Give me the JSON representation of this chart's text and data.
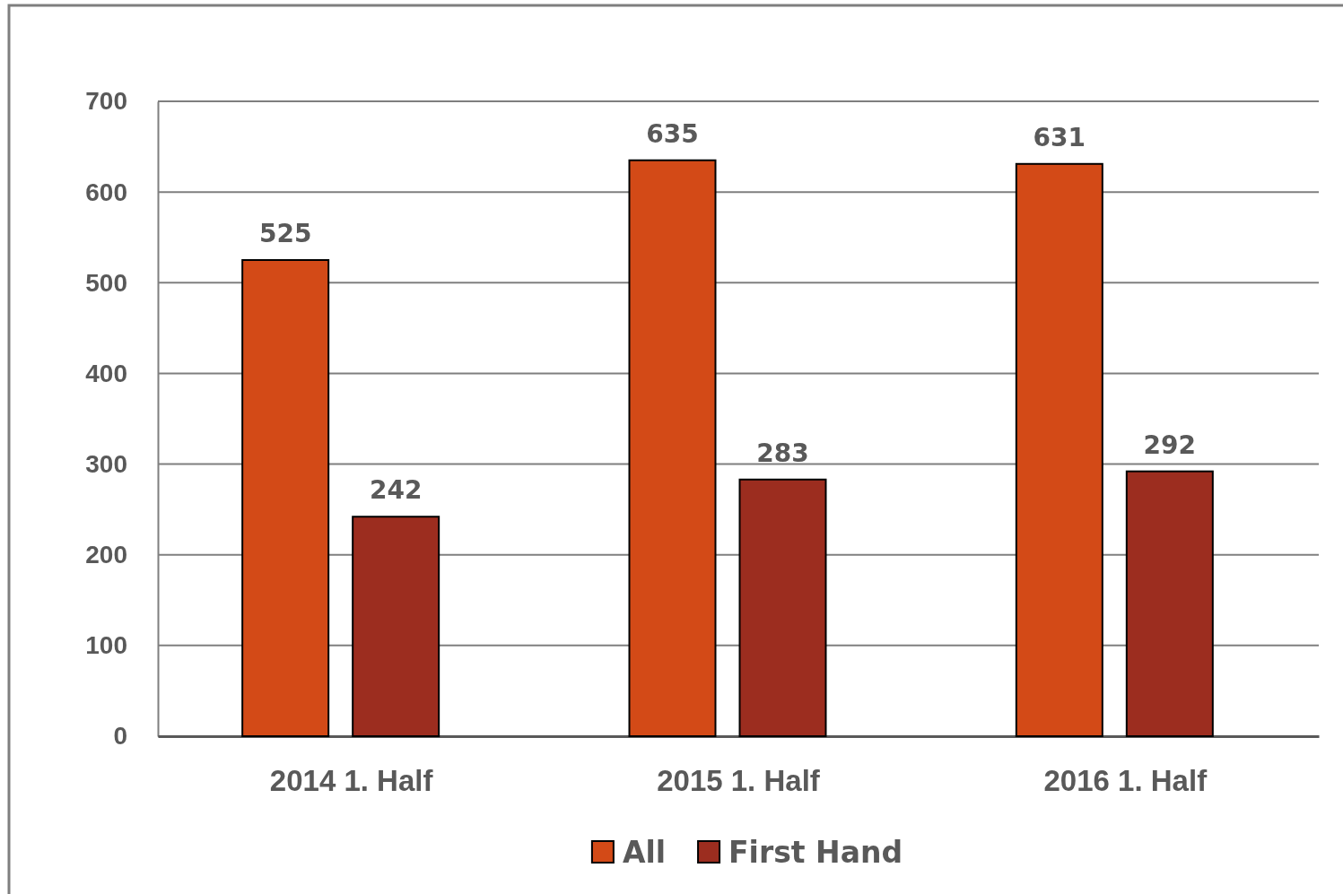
{
  "chart_data": {
    "type": "bar",
    "categories": [
      "2014 1. Half",
      "2015 1. Half",
      "2016 1. Half"
    ],
    "series": [
      {
        "name": "All",
        "color": "#d34a17",
        "values": [
          525,
          635,
          631
        ]
      },
      {
        "name": "First Hand",
        "color": "#9c2d1f",
        "values": [
          242,
          283,
          292
        ]
      }
    ],
    "ylim": [
      0,
      700
    ],
    "yticks": [
      0,
      100,
      200,
      300,
      400,
      500,
      600,
      700
    ],
    "grid": "y",
    "legend": "bottom",
    "data_labels": true
  }
}
